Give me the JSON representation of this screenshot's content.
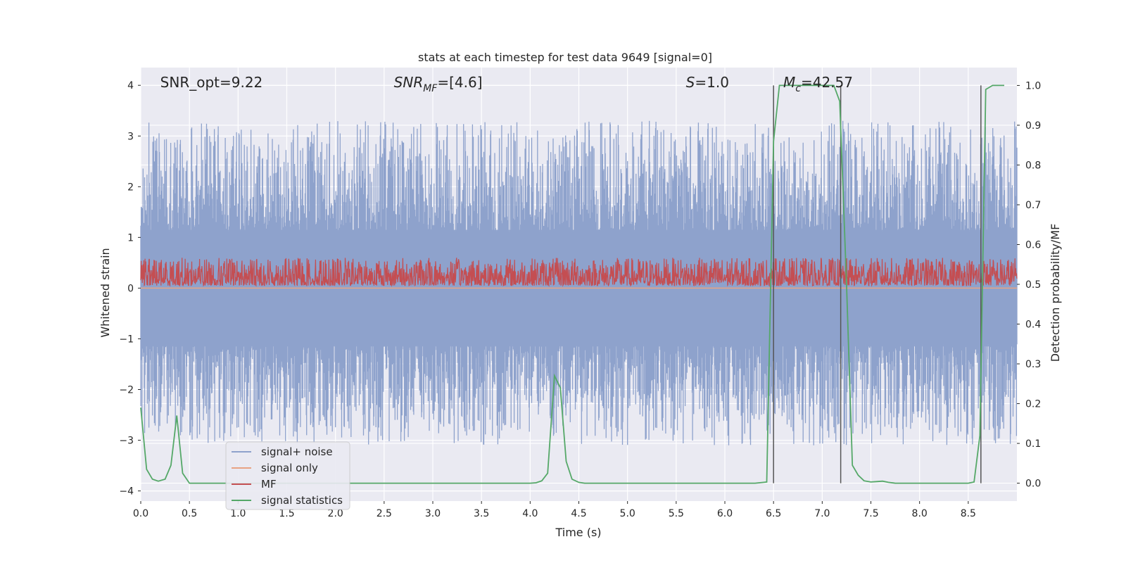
{
  "chart_data": {
    "type": "line",
    "title": "stats at each timestep for test data 9649 [signal=0]",
    "xlabel": "Time (s)",
    "ylabel": "Whitened strain",
    "y2label": "Detection probability/MF",
    "xlim": [
      0,
      9
    ],
    "ylim": [
      -4.2,
      4.35
    ],
    "y2lim": [
      -0.045,
      1.045
    ],
    "x_ticks": [
      0.0,
      0.5,
      1.0,
      1.5,
      2.0,
      2.5,
      3.0,
      3.5,
      4.0,
      4.5,
      5.0,
      5.5,
      6.0,
      6.5,
      7.0,
      7.5,
      8.0,
      8.5
    ],
    "x_tick_labels": [
      "0.0",
      "0.5",
      "1.0",
      "1.5",
      "2.0",
      "2.5",
      "3.0",
      "3.5",
      "4.0",
      "4.5",
      "5.0",
      "5.5",
      "6.0",
      "6.5",
      "7.0",
      "7.5",
      "8.0",
      "8.5"
    ],
    "y_ticks": [
      -4,
      -3,
      -2,
      -1,
      0,
      1,
      2,
      3,
      4
    ],
    "y_tick_labels": [
      "−4",
      "−3",
      "−2",
      "−1",
      "0",
      "1",
      "2",
      "3",
      "4"
    ],
    "y2_ticks": [
      0.0,
      0.1,
      0.2,
      0.3,
      0.4,
      0.5,
      0.6,
      0.7,
      0.8,
      0.9,
      1.0
    ],
    "y2_tick_labels": [
      "0.0",
      "0.1",
      "0.2",
      "0.3",
      "0.4",
      "0.5",
      "0.6",
      "0.7",
      "0.8",
      "0.9",
      "1.0"
    ],
    "grid": true,
    "legend_position": "lower-left",
    "annotations": [
      {
        "text": "SNR_opt=9.22",
        "x": 0.2
      },
      {
        "text": "SNR",
        "sub": "MF",
        "suffix": "=[4.6]",
        "italic": true,
        "x": 2.6
      },
      {
        "text": "S",
        "suffix": "=1.0",
        "italic": true,
        "x": 5.6
      },
      {
        "text": "M",
        "sub": "c",
        "suffix": "=42.57",
        "italic": true,
        "x": 6.6
      }
    ],
    "vertical_lines": [
      6.5,
      7.19,
      8.63
    ],
    "series": [
      {
        "name": "signal+ noise",
        "color": "#8ea2cc",
        "axis": "left",
        "note_sample_period": 0.0025,
        "band_y_min": -3.7,
        "band_y_max": 4.0
      },
      {
        "name": "signal only",
        "color": "#e8a383",
        "axis": "left",
        "values_constant": 0.0
      },
      {
        "name": "MF",
        "color": "#c44e52",
        "axis": "left",
        "band_y_min": 0.0,
        "band_y_max": 1.0
      },
      {
        "name": "signal statistics",
        "color": "#55a868",
        "axis": "right",
        "x": [
          0.0,
          0.06,
          0.12,
          0.18,
          0.25,
          0.31,
          0.37,
          0.43,
          0.5,
          0.56,
          0.62,
          0.68,
          0.75,
          1.0,
          1.5,
          2.0,
          2.5,
          3.0,
          3.5,
          4.0,
          4.06,
          4.12,
          4.18,
          4.25,
          4.31,
          4.37,
          4.43,
          4.5,
          4.56,
          4.62,
          5.0,
          5.5,
          6.0,
          6.31,
          6.43,
          6.5,
          6.56,
          6.62,
          6.68,
          6.75,
          7.0,
          7.12,
          7.18,
          7.25,
          7.31,
          7.37,
          7.43,
          7.5,
          7.56,
          7.62,
          7.68,
          7.75,
          8.0,
          8.5,
          8.56,
          8.62,
          8.68,
          8.75,
          8.87
        ],
        "values": [
          0.19,
          0.035,
          0.01,
          0.005,
          0.01,
          0.045,
          0.17,
          0.025,
          0.0,
          0.0,
          0.0,
          0.0,
          0.0,
          0.0,
          0.0,
          0.0,
          0.0,
          0.0,
          0.0,
          0.0,
          0.001,
          0.006,
          0.025,
          0.27,
          0.24,
          0.055,
          0.01,
          0.002,
          0.0,
          0.0,
          0.0,
          0.0,
          0.0,
          0.0,
          0.003,
          0.86,
          1.0,
          1.0,
          1.0,
          1.0,
          1.0,
          1.0,
          0.96,
          0.5,
          0.045,
          0.02,
          0.006,
          0.003,
          0.004,
          0.005,
          0.002,
          0.0,
          0.0,
          0.0,
          0.003,
          0.12,
          0.99,
          1.0,
          1.0
        ]
      }
    ]
  }
}
